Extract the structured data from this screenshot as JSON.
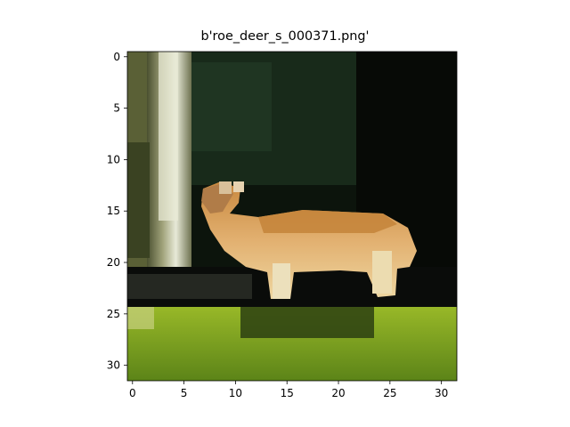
{
  "figure": {
    "title": "b'roe_deer_s_000371.png'"
  },
  "chart_data": {
    "type": "heatmap",
    "title": "b'roe_deer_s_000371.png'",
    "xlabel": "",
    "ylabel": "",
    "image_size": [
      32,
      32
    ],
    "xlim": [
      -0.5,
      31.5
    ],
    "ylim": [
      31.5,
      -0.5
    ],
    "x_ticks": [
      0,
      5,
      10,
      15,
      20,
      25,
      30
    ],
    "y_ticks": [
      0,
      5,
      10,
      15,
      20,
      25,
      30
    ],
    "x_tick_labels": [
      "0",
      "5",
      "10",
      "15",
      "20",
      "25",
      "30"
    ],
    "y_tick_labels": [
      "0",
      "5",
      "10",
      "15",
      "20",
      "25",
      "30"
    ],
    "grid": false,
    "content": "low-resolution photo of a roe deer standing on grass in front of a tree trunk against a dark forest background",
    "regions": [
      {
        "name": "dark-forest-background",
        "rows": [
          0,
          24
        ],
        "cols": [
          0,
          31
        ],
        "color": "#0f1a0f"
      },
      {
        "name": "upper-background-greens",
        "rows": [
          0,
          12
        ],
        "cols": [
          5,
          22
        ],
        "color": "#1e3220"
      },
      {
        "name": "tree-trunk-left",
        "rows": [
          0,
          22
        ],
        "cols": [
          0,
          5
        ],
        "color": "#a8a87c"
      },
      {
        "name": "tree-trunk-highlight",
        "rows": [
          0,
          20
        ],
        "cols": [
          3,
          5
        ],
        "color": "#e6e8d4"
      },
      {
        "name": "deer-body",
        "rows": [
          15,
          22
        ],
        "cols": [
          8,
          27
        ],
        "color": "#dca868"
      },
      {
        "name": "deer-back",
        "rows": [
          15,
          17
        ],
        "cols": [
          14,
          25
        ],
        "color": "#c4843c"
      },
      {
        "name": "deer-head",
        "rows": [
          12,
          16
        ],
        "cols": [
          6,
          11
        ],
        "color": "#c89458"
      },
      {
        "name": "deer-legs",
        "rows": [
          21,
          24
        ],
        "cols": [
          13,
          26
        ],
        "color": "#e8dcb4"
      },
      {
        "name": "dark-ground-shadow",
        "rows": [
          22,
          25
        ],
        "cols": [
          0,
          31
        ],
        "color": "#0a0c0a"
      },
      {
        "name": "grass-foreground",
        "rows": [
          25,
          31
        ],
        "cols": [
          0,
          31
        ],
        "color": "#7ca022"
      }
    ]
  }
}
